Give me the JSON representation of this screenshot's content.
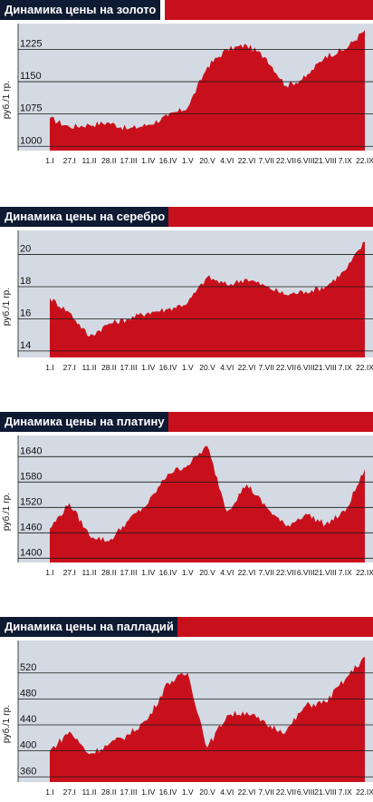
{
  "colors": {
    "plot_bg": "#d4dae3",
    "fill": "#c8101c",
    "header_bg": "#0f1a33",
    "header_accent": "#c8101c"
  },
  "x_ticks": [
    "1.I",
    "27.I",
    "11.II",
    "28.II",
    "17.III",
    "1.IV",
    "16.IV",
    "1.V",
    "20.V",
    "4.VI",
    "22.VI",
    "7.VII",
    "22.VII",
    "6.VIII",
    "21.VIII",
    "7.IX",
    "22.IX"
  ],
  "chart_data": [
    {
      "type": "area",
      "title": "Динамика цены на золото",
      "ylabel": "руб./1 гр.",
      "yticks": [
        1000,
        1075,
        1150,
        1225
      ],
      "ylim": [
        990,
        1285
      ],
      "grid": true,
      "x": [
        "1.I",
        "27.I",
        "11.II",
        "28.II",
        "17.III",
        "1.IV",
        "16.IV",
        "1.V",
        "20.V",
        "4.VI",
        "22.VI",
        "7.VII",
        "22.VII",
        "6.VIII",
        "21.VIII",
        "7.IX",
        "22.IX"
      ],
      "values": [
        1065,
        1045,
        1050,
        1055,
        1040,
        1050,
        1070,
        1090,
        1185,
        1225,
        1235,
        1205,
        1140,
        1160,
        1210,
        1225,
        1270
      ]
    },
    {
      "type": "area",
      "title": "Динамика цены на серебро",
      "ylabel": "руб./1 гр.",
      "yticks": [
        14,
        16,
        18,
        20
      ],
      "ylim": [
        13.6,
        21.5
      ],
      "grid": true,
      "x": [
        "1.I",
        "27.I",
        "11.II",
        "28.II",
        "17.III",
        "1.IV",
        "16.IV",
        "1.V",
        "20.V",
        "4.VI",
        "22.VI",
        "7.VII",
        "22.VII",
        "6.VIII",
        "21.VIII",
        "7.IX",
        "22.IX"
      ],
      "values": [
        17.3,
        16.4,
        14.9,
        15.7,
        16.0,
        16.4,
        16.6,
        17.0,
        18.6,
        18.1,
        18.5,
        18.0,
        17.5,
        17.7,
        18.0,
        19.0,
        20.8
      ]
    },
    {
      "type": "area",
      "title": "Динамика цены на платину",
      "ylabel": "руб./1 гр.",
      "yticks": [
        1400,
        1460,
        1520,
        1580,
        1640
      ],
      "ylim": [
        1390,
        1690
      ],
      "grid": true,
      "x": [
        "1.I",
        "27.I",
        "11.II",
        "28.II",
        "17.III",
        "1.IV",
        "16.IV",
        "1.V",
        "20.V",
        "4.VI",
        "22.VI",
        "7.VII",
        "22.VII",
        "6.VIII",
        "21.VIII",
        "7.IX",
        "22.IX"
      ],
      "values": [
        1470,
        1530,
        1455,
        1440,
        1490,
        1530,
        1600,
        1620,
        1665,
        1510,
        1575,
        1520,
        1475,
        1505,
        1480,
        1510,
        1610
      ]
    },
    {
      "type": "area",
      "title": "Динамика цены на палладий",
      "ylabel": "руб./1 гр.",
      "yticks": [
        360,
        400,
        440,
        480,
        520
      ],
      "ylim": [
        352,
        570
      ],
      "grid": true,
      "x": [
        "1.I",
        "27.I",
        "11.II",
        "28.II",
        "17.III",
        "1.IV",
        "16.IV",
        "1.V",
        "20.V",
        "4.VI",
        "22.VI",
        "7.VII",
        "22.VII",
        "6.VIII",
        "21.VIII",
        "7.IX",
        "22.IX"
      ],
      "values": [
        400,
        430,
        395,
        410,
        425,
        450,
        505,
        520,
        405,
        455,
        460,
        440,
        430,
        470,
        475,
        510,
        545
      ]
    }
  ]
}
